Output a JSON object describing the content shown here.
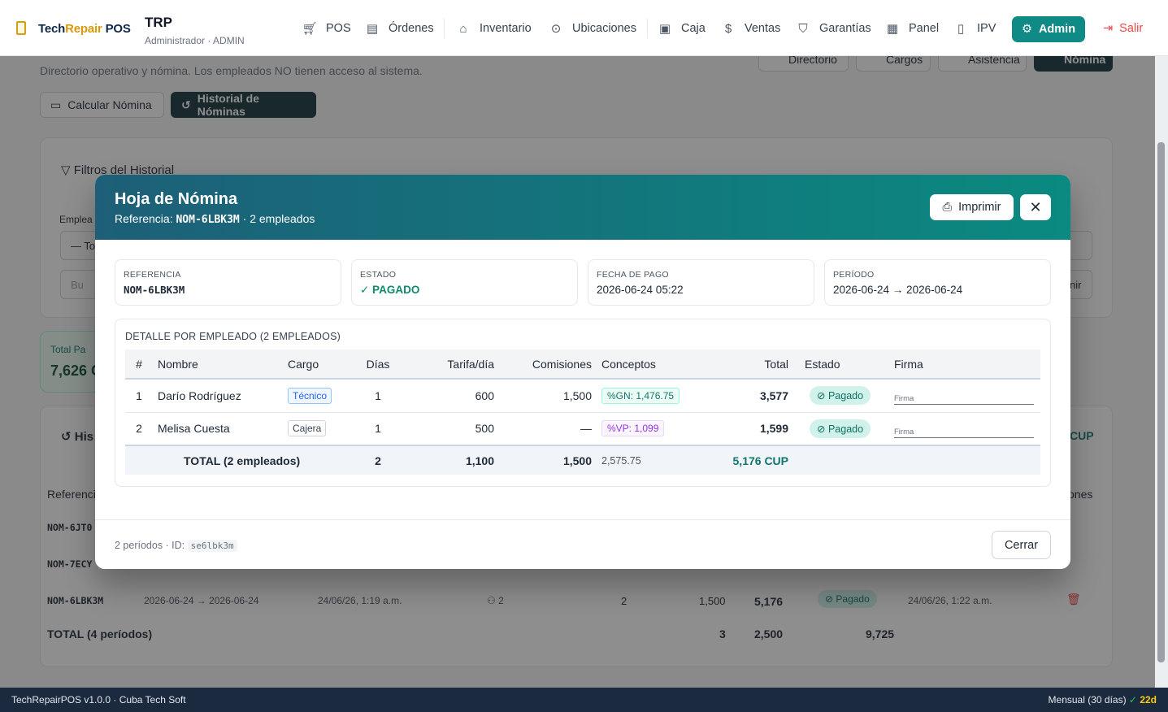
{
  "brand": {
    "part1": "Tech",
    "part2": "Repair",
    "part3": " POS"
  },
  "org": {
    "name": "TRP",
    "role": "Administrador · ADMIN"
  },
  "nav": {
    "pos": "POS",
    "ordenes": "Órdenes",
    "inventario": "Inventario",
    "ubicaciones": "Ubicaciones",
    "caja": "Caja",
    "ventas": "Ventas",
    "garantias": "Garantías",
    "panel": "Panel",
    "ipv": "IPV",
    "admin": "Admin",
    "salir": "Salir"
  },
  "background": {
    "subtitle": "Directorio operativo y nómina. Los empleados NO tienen acceso al sistema.",
    "tabs": {
      "directorio": "Directorio",
      "cargos": "Cargos",
      "asistencia": "Asistencia",
      "nomina": "Nómina"
    },
    "btn_calcular": "Calcular Nómina",
    "btn_historial": "Historial de Nóminas",
    "filters_title": "Filtros del Historial",
    "emp_label": "Emplea",
    "select_value": "— To",
    "search_ph": "Bu",
    "clear_frag": "nir",
    "total_label": "Total Pa",
    "total_value": "7,626 C",
    "hist_title": "His",
    "cup_frag": "CUP",
    "ref_header": "Referenci",
    "actions_header": "ones",
    "row1_ref": "NOM-6JT0",
    "row2_ref": "NOM-7ECY",
    "row3": {
      "ref": "NOM-6LBK3M",
      "period": "2026-06-24 → 2026-06-24",
      "created": "24/06/26, 1:19 a.m.",
      "emps": "2",
      "days": "2",
      "comm": "1,500",
      "total": "5,176",
      "status": "Pagado",
      "paid": "24/06/26, 1:22 a.m."
    },
    "totals": {
      "label": "TOTAL (4 períodos)",
      "days": "3",
      "tarifa": "2,500",
      "total": "9,725"
    }
  },
  "modal": {
    "title": "Hoja de Nómina",
    "subtitle_prefix": "Referencia: ",
    "subtitle_ref": "NOM-6LBK3M",
    "subtitle_suffix": " · 2 empleados",
    "print_label": "Imprimir",
    "info": [
      {
        "label": "REFERENCIA",
        "value": "NOM-6LBK3M"
      },
      {
        "label": "ESTADO",
        "value": "✓ PAGADO"
      },
      {
        "label": "FECHA DE PAGO",
        "value": "2026-06-24 05:22"
      },
      {
        "label": "PERÍODO",
        "value": "2026-06-24 → 2026-06-24"
      }
    ],
    "detail_title": "DETALLE POR EMPLEADO (2 EMPLEADOS)",
    "columns": [
      "#",
      "Nombre",
      "Cargo",
      "Días",
      "Tarifa/día",
      "Comisiones",
      "Conceptos",
      "Total",
      "Estado",
      "Firma"
    ],
    "rows": [
      {
        "n": "1",
        "nombre": "Darío Rodríguez",
        "cargo": "Técnico",
        "dias": "1",
        "tarifa": "600",
        "comisiones": "1,500",
        "concepto": "%GN: 1,476.75",
        "total": "3,577",
        "estado": "Pagado",
        "firma": "Firma"
      },
      {
        "n": "2",
        "nombre": "Melisa Cuesta",
        "cargo": "Cajera",
        "dias": "1",
        "tarifa": "500",
        "comisiones": "—",
        "concepto": "%VP: 1,099",
        "total": "1,599",
        "estado": "Pagado",
        "firma": "Firma"
      }
    ],
    "totals": {
      "label": "TOTAL (2 empleados)",
      "dias": "2",
      "tarifa": "1,100",
      "comisiones": "1,500",
      "conceptos": "2,575.75",
      "total": "5,176 CUP"
    },
    "footer_info": "2 períodos · ID: ",
    "footer_id": "se6lbk3m",
    "close_label": "Cerrar"
  },
  "app_footer": {
    "version": "TechRepairPOS v1.0.0 · Cuba Tech Soft",
    "plan": "Mensual (30 días) ",
    "check": "✓",
    "days": " 22d"
  }
}
